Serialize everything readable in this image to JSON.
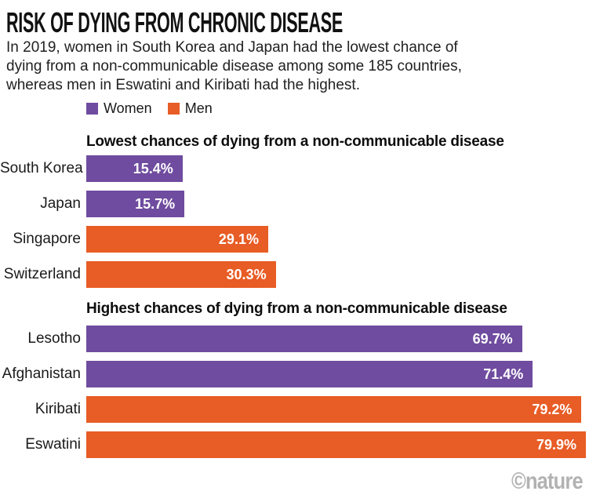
{
  "title": "RISK OF DYING FROM CHRONIC DISEASE",
  "subtitle_lines": [
    "In 2019, women in South Korea and Japan had the lowest chance of",
    "dying from a non-communicable disease among some 185 countries,",
    "whereas men in Eswatini and Kiribati had the highest."
  ],
  "legend": {
    "women_label": "Women",
    "men_label": "Men"
  },
  "colors": {
    "women": "#6f4c9f",
    "men": "#e85c25",
    "watermark": "#b2b2b2"
  },
  "watermark": "©nature",
  "chart_data": {
    "type": "bar",
    "orientation": "horizontal",
    "unit": "%",
    "xlim": [
      0,
      80.4
    ],
    "grid": false,
    "legend_position": "top-left",
    "series_names": [
      "Women",
      "Men"
    ],
    "sections": [
      {
        "title": "Lowest chances of dying from a non-communicable disease",
        "rows": [
          {
            "country": "South Korea",
            "series": "Women",
            "value": 15.4,
            "label": "15.4%"
          },
          {
            "country": "Japan",
            "series": "Women",
            "value": 15.7,
            "label": "15.7%"
          },
          {
            "country": "Singapore",
            "series": "Men",
            "value": 29.1,
            "label": "29.1%"
          },
          {
            "country": "Switzerland",
            "series": "Men",
            "value": 30.3,
            "label": "30.3%"
          }
        ]
      },
      {
        "title": "Highest chances of dying from a non-communicable disease",
        "rows": [
          {
            "country": "Lesotho",
            "series": "Women",
            "value": 69.7,
            "label": "69.7%"
          },
          {
            "country": "Afghanistan",
            "series": "Women",
            "value": 71.4,
            "label": "71.4%"
          },
          {
            "country": "Kiribati",
            "series": "Men",
            "value": 79.2,
            "label": "79.2%"
          },
          {
            "country": "Eswatini",
            "series": "Men",
            "value": 79.9,
            "label": "79.9%"
          }
        ]
      }
    ]
  }
}
